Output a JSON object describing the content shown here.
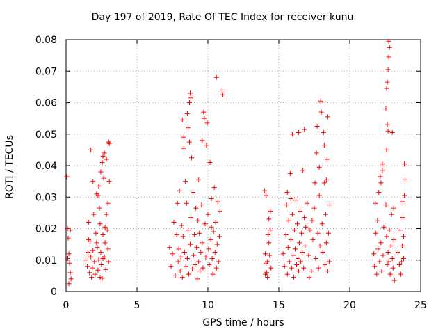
{
  "chart_data": {
    "type": "scatter",
    "title": "Day 197 of 2019, Rate Of TEC Index for receiver kunu",
    "xlabel": "GPS time / hours",
    "ylabel": "ROTI / TECUs",
    "xlim": [
      0,
      25
    ],
    "ylim": [
      0,
      0.08
    ],
    "x_ticks": [
      "0",
      "5",
      "10",
      "15",
      "20",
      "25"
    ],
    "y_ticks": [
      "0",
      "0.01",
      "0.02",
      "0.03",
      "0.04",
      "0.05",
      "0.06",
      "0.07",
      "0.08"
    ],
    "grid": true,
    "marker": "+",
    "color": "#ff0000",
    "series": [
      {
        "points": [
          [
            0.05,
            0.0365
          ],
          [
            0.1,
            0.02
          ],
          [
            0.15,
            0.017
          ],
          [
            0.2,
            0.012
          ],
          [
            0.25,
            0.009
          ],
          [
            0.3,
            0.006
          ],
          [
            0.35,
            0.004
          ],
          [
            0.2,
            0.0025
          ],
          [
            0.3,
            0.0195
          ],
          [
            0.12,
            0.0105
          ],
          [
            1.4,
            0.01
          ],
          [
            1.5,
            0.008
          ],
          [
            1.55,
            0.0125
          ],
          [
            1.6,
            0.022
          ],
          [
            1.65,
            0.006
          ],
          [
            1.7,
            0.016
          ],
          [
            1.75,
            0.011
          ],
          [
            1.8,
            0.0045
          ],
          [
            1.85,
            0.0075
          ],
          [
            1.9,
            0.013
          ],
          [
            1.95,
            0.0245
          ],
          [
            1.75,
            0.045
          ],
          [
            1.9,
            0.035
          ],
          [
            2.0,
            0.0095
          ],
          [
            2.05,
            0.0055
          ],
          [
            2.1,
            0.0185
          ],
          [
            2.15,
            0.031
          ],
          [
            2.2,
            0.014
          ],
          [
            2.25,
            0.0068
          ],
          [
            2.3,
            0.01
          ],
          [
            2.35,
            0.0265
          ],
          [
            2.4,
            0.0215
          ],
          [
            2.45,
            0.0125
          ],
          [
            2.5,
            0.0085
          ],
          [
            2.55,
            0.0042
          ],
          [
            2.6,
            0.018
          ],
          [
            2.65,
            0.036
          ],
          [
            2.7,
            0.011
          ],
          [
            2.75,
            0.0155
          ],
          [
            2.8,
            0.007
          ],
          [
            2.55,
            0.041
          ],
          [
            2.6,
            0.043
          ],
          [
            2.7,
            0.044
          ],
          [
            2.45,
            0.038
          ],
          [
            2.85,
            0.0245
          ],
          [
            2.9,
            0.0195
          ],
          [
            2.95,
            0.0135
          ],
          [
            3.0,
            0.0095
          ],
          [
            3.05,
            0.035
          ],
          [
            3.0,
            0.0475
          ],
          [
            3.05,
            0.047
          ],
          [
            2.85,
            0.042
          ],
          [
            2.3,
            0.0335
          ],
          [
            2.15,
            0.0155
          ],
          [
            2.4,
            0.0045
          ],
          [
            2.6,
            0.0105
          ],
          [
            2.75,
            0.0205
          ],
          [
            2.95,
            0.028
          ],
          [
            1.6,
            0.0165
          ],
          [
            2.25,
            0.0305
          ],
          [
            7.3,
            0.014
          ],
          [
            7.4,
            0.008
          ],
          [
            7.5,
            0.012
          ],
          [
            7.6,
            0.022
          ],
          [
            7.7,
            0.005
          ],
          [
            7.8,
            0.018
          ],
          [
            7.85,
            0.028
          ],
          [
            7.9,
            0.0095
          ],
          [
            7.95,
            0.0135
          ],
          [
            8.0,
            0.032
          ],
          [
            8.05,
            0.0065
          ],
          [
            8.1,
            0.011
          ],
          [
            8.15,
            0.021
          ],
          [
            8.2,
            0.0045
          ],
          [
            8.25,
            0.0175
          ],
          [
            8.3,
            0.0455
          ],
          [
            8.35,
            0.0125
          ],
          [
            8.4,
            0.035
          ],
          [
            8.45,
            0.008
          ],
          [
            8.5,
            0.028
          ],
          [
            8.55,
            0.0105
          ],
          [
            8.6,
            0.0195
          ],
          [
            8.65,
            0.0055
          ],
          [
            8.7,
            0.0475
          ],
          [
            8.75,
            0.015
          ],
          [
            8.8,
            0.0235
          ],
          [
            8.85,
            0.0425
          ],
          [
            8.9,
            0.0072
          ],
          [
            8.95,
            0.0315
          ],
          [
            9.0,
            0.0115
          ],
          [
            8.7,
            0.06
          ],
          [
            8.75,
            0.063
          ],
          [
            8.8,
            0.0615
          ],
          [
            8.6,
            0.052
          ],
          [
            8.55,
            0.0565
          ],
          [
            8.3,
            0.049
          ],
          [
            8.2,
            0.0545
          ],
          [
            9.05,
            0.018
          ],
          [
            9.1,
            0.0085
          ],
          [
            9.15,
            0.0265
          ],
          [
            9.2,
            0.014
          ],
          [
            9.25,
            0.004
          ],
          [
            9.3,
            0.0225
          ],
          [
            9.35,
            0.0095
          ],
          [
            9.4,
            0.0185
          ],
          [
            9.45,
            0.0065
          ],
          [
            9.5,
            0.0125
          ],
          [
            9.55,
            0.0275
          ],
          [
            9.6,
            0.0155
          ],
          [
            9.65,
            0.0075
          ],
          [
            9.7,
            0.057
          ],
          [
            9.75,
            0.055
          ],
          [
            9.6,
            0.048
          ],
          [
            9.8,
            0.0215
          ],
          [
            9.85,
            0.011
          ],
          [
            9.9,
            0.0465
          ],
          [
            9.95,
            0.0535
          ],
          [
            10.0,
            0.0245
          ],
          [
            10.05,
            0.0135
          ],
          [
            10.1,
            0.0085
          ],
          [
            10.15,
            0.041
          ],
          [
            10.2,
            0.0165
          ],
          [
            10.25,
            0.0295
          ],
          [
            10.3,
            0.0105
          ],
          [
            10.35,
            0.0055
          ],
          [
            10.4,
            0.019
          ],
          [
            10.45,
            0.033
          ],
          [
            10.5,
            0.0125
          ],
          [
            10.55,
            0.022
          ],
          [
            10.6,
            0.0075
          ],
          [
            10.65,
            0.015
          ],
          [
            10.7,
            0.0285
          ],
          [
            10.75,
            0.0095
          ],
          [
            10.8,
            0.0175
          ],
          [
            10.85,
            0.0255
          ],
          [
            10.6,
            0.068
          ],
          [
            11.0,
            0.064
          ],
          [
            11.05,
            0.0625
          ],
          [
            10.25,
            0.0205
          ],
          [
            9.35,
            0.0355
          ],
          [
            14.0,
            0.032
          ],
          [
            14.05,
            0.012
          ],
          [
            14.1,
            0.009
          ],
          [
            14.15,
            0.006
          ],
          [
            14.2,
            0.0045
          ],
          [
            14.25,
            0.018
          ],
          [
            14.3,
            0.023
          ],
          [
            14.35,
            0.0115
          ],
          [
            14.4,
            0.0255
          ],
          [
            14.45,
            0.0075
          ],
          [
            14.1,
            0.0305
          ],
          [
            14.3,
            0.0155
          ],
          [
            14.2,
            0.0095
          ],
          [
            14.4,
            0.0195
          ],
          [
            14.05,
            0.0055
          ],
          [
            15.3,
            0.012
          ],
          [
            15.4,
            0.008
          ],
          [
            15.5,
            0.018
          ],
          [
            15.55,
            0.0275
          ],
          [
            15.6,
            0.0055
          ],
          [
            15.65,
            0.014
          ],
          [
            15.7,
            0.0225
          ],
          [
            15.75,
            0.0095
          ],
          [
            15.8,
            0.0375
          ],
          [
            15.85,
            0.0165
          ],
          [
            15.9,
            0.0075
          ],
          [
            15.95,
            0.0245
          ],
          [
            16.0,
            0.0115
          ],
          [
            16.05,
            0.0045
          ],
          [
            16.1,
            0.0195
          ],
          [
            16.15,
            0.0135
          ],
          [
            16.2,
            0.029
          ],
          [
            16.25,
            0.0085
          ],
          [
            16.3,
            0.0215
          ],
          [
            16.35,
            0.0105
          ],
          [
            16.4,
            0.0065
          ],
          [
            16.45,
            0.0155
          ],
          [
            16.5,
            0.0255
          ],
          [
            16.55,
            0.0095
          ],
          [
            16.6,
            0.0185
          ],
          [
            16.65,
            0.0125
          ],
          [
            16.7,
            0.0385
          ],
          [
            16.75,
            0.0075
          ],
          [
            16.8,
            0.0235
          ],
          [
            16.85,
            0.0145
          ],
          [
            15.95,
            0.05
          ],
          [
            16.4,
            0.0505
          ],
          [
            16.8,
            0.0515
          ],
          [
            17.0,
            0.028
          ],
          [
            17.1,
            0.0115
          ],
          [
            17.2,
            0.0195
          ],
          [
            17.3,
            0.0065
          ],
          [
            17.4,
            0.0165
          ],
          [
            17.5,
            0.0265
          ],
          [
            17.6,
            0.0105
          ],
          [
            17.65,
            0.044
          ],
          [
            17.7,
            0.0525
          ],
          [
            17.75,
            0.0185
          ],
          [
            17.8,
            0.0075
          ],
          [
            17.85,
            0.0305
          ],
          [
            17.9,
            0.0145
          ],
          [
            17.95,
            0.0605
          ],
          [
            18.0,
            0.057
          ],
          [
            18.05,
            0.0215
          ],
          [
            18.1,
            0.0125
          ],
          [
            18.15,
            0.0505
          ],
          [
            18.2,
            0.0345
          ],
          [
            18.25,
            0.0085
          ],
          [
            18.3,
            0.0245
          ],
          [
            18.35,
            0.0155
          ],
          [
            18.4,
            0.042
          ],
          [
            18.45,
            0.0555
          ],
          [
            18.5,
            0.0185
          ],
          [
            18.55,
            0.0095
          ],
          [
            18.6,
            0.0275
          ],
          [
            18.2,
            0.0465
          ],
          [
            17.85,
            0.0395
          ],
          [
            17.55,
            0.0345
          ],
          [
            18.35,
            0.0355
          ],
          [
            15.6,
            0.0315
          ],
          [
            16.9,
            0.0205
          ],
          [
            17.15,
            0.0045
          ],
          [
            18.45,
            0.0065
          ],
          [
            15.85,
            0.0295
          ],
          [
            17.35,
            0.0225
          ],
          [
            21.7,
            0.012
          ],
          [
            21.75,
            0.008
          ],
          [
            21.8,
            0.028
          ],
          [
            21.85,
            0.0185
          ],
          [
            21.9,
            0.0055
          ],
          [
            21.95,
            0.0225
          ],
          [
            22.0,
            0.0135
          ],
          [
            22.05,
            0.0315
          ],
          [
            22.1,
            0.0095
          ],
          [
            22.15,
            0.0365
          ],
          [
            22.2,
            0.0155
          ],
          [
            22.25,
            0.0065
          ],
          [
            22.3,
            0.0405
          ],
          [
            22.35,
            0.0115
          ],
          [
            22.4,
            0.0205
          ],
          [
            22.2,
            0.0345
          ],
          [
            22.3,
            0.0385
          ],
          [
            22.55,
            0.0275
          ],
          [
            22.6,
            0.0175
          ],
          [
            22.65,
            0.0085
          ],
          [
            22.7,
            0.0125
          ],
          [
            22.75,
            0.0095
          ],
          [
            22.8,
            0.0195
          ],
          [
            22.85,
            0.0055
          ],
          [
            22.9,
            0.0145
          ],
          [
            22.95,
            0.0245
          ],
          [
            23.0,
            0.0105
          ],
          [
            23.05,
            0.0075
          ],
          [
            23.1,
            0.0165
          ],
          [
            23.15,
            0.0035
          ],
          [
            22.6,
            0.045
          ],
          [
            22.65,
            0.053
          ],
          [
            22.7,
            0.051
          ],
          [
            22.55,
            0.058
          ],
          [
            22.6,
            0.0645
          ],
          [
            22.65,
            0.0665
          ],
          [
            22.7,
            0.0705
          ],
          [
            22.75,
            0.0745
          ],
          [
            22.8,
            0.0775
          ],
          [
            22.75,
            0.0795
          ],
          [
            23.0,
            0.0505
          ],
          [
            23.1,
            0.0265
          ],
          [
            23.4,
            0.0125
          ],
          [
            23.5,
            0.0085
          ],
          [
            23.55,
            0.0195
          ],
          [
            23.6,
            0.0055
          ],
          [
            23.7,
            0.0145
          ],
          [
            23.75,
            0.0235
          ],
          [
            23.8,
            0.0105
          ],
          [
            23.85,
            0.0305
          ],
          [
            23.85,
            0.0405
          ],
          [
            23.9,
            0.0355
          ],
          [
            23.8,
            0.0175
          ],
          [
            23.65,
            0.0095
          ],
          [
            23.75,
            0.0285
          ]
        ]
      }
    ]
  }
}
